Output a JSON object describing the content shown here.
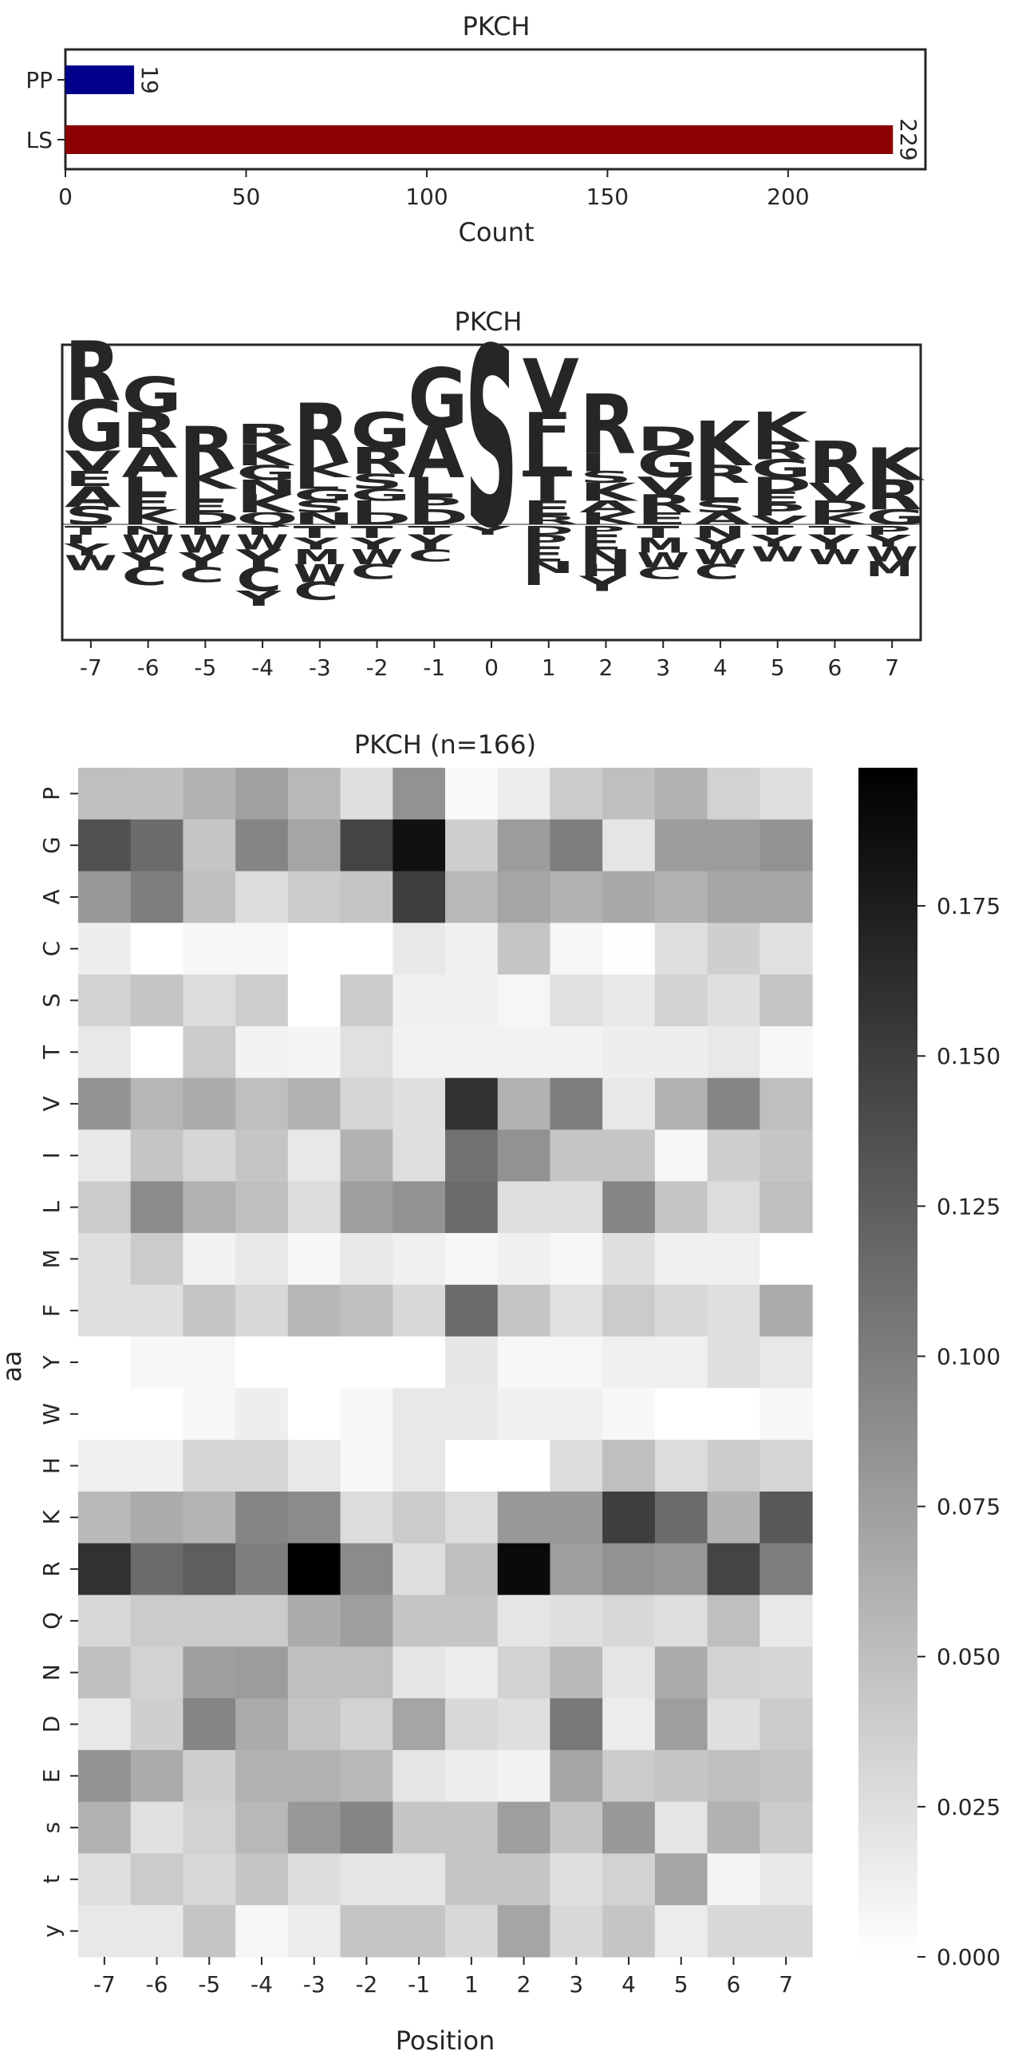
{
  "colors": {
    "PP": "#00008B",
    "LS": "#8B0000",
    "aa_colors": {
      "R": "#0000EE",
      "K": "#0000EE",
      "H": "#7B2FBE",
      "G": "#008000",
      "S": "#008000",
      "T": "#008000",
      "Y": "#008000",
      "A": "#008000",
      "C": "#008000",
      "N": "#9B30D0",
      "Q": "#9B30D0",
      "D": "#DC143C",
      "E": "#DC143C",
      "V": "#DAA520",
      "L": "#DAA520",
      "I": "#DAA520",
      "F": "#DAA520",
      "M": "#DAA520",
      "W": "#DAA520",
      "P": "#000000",
      "s": "#8B008B",
      "t": "#8B008B",
      "y": "#8B008B"
    }
  },
  "chart_data": [
    {
      "type": "bar",
      "orientation": "horizontal",
      "title": "PKCH",
      "categories": [
        "PP",
        "LS"
      ],
      "values": [
        19,
        229
      ],
      "xlabel": "Count",
      "ylabel": "",
      "xlim": [
        0,
        238
      ],
      "xticks": [
        0,
        50,
        100,
        150,
        200
      ],
      "data_labels": [
        "19",
        "229"
      ]
    },
    {
      "type": "sequence-logo",
      "title": "PKCH",
      "positions": [
        "-7",
        "-6",
        "-5",
        "-4",
        "-3",
        "-2",
        "-1",
        "0",
        "1",
        "2",
        "3",
        "4",
        "5",
        "6",
        "7"
      ],
      "enriched": [
        [
          [
            "S",
            0.06
          ],
          [
            "A",
            0.07
          ],
          [
            "E",
            0.05
          ],
          [
            "V",
            0.07
          ],
          [
            "G",
            0.17
          ],
          [
            "R",
            0.2
          ]
        ],
        [
          [
            "K",
            0.05
          ],
          [
            "E",
            0.05
          ],
          [
            "L",
            0.06
          ],
          [
            "A",
            0.1
          ],
          [
            "R",
            0.12
          ],
          [
            "G",
            0.12
          ]
        ],
        [
          [
            "D",
            0.04
          ],
          [
            "E",
            0.04
          ],
          [
            "L",
            0.04
          ],
          [
            "K",
            0.07
          ],
          [
            "R",
            0.14
          ]
        ],
        [
          [
            "Q",
            0.04
          ],
          [
            "K",
            0.06
          ],
          [
            "N",
            0.05
          ],
          [
            "G",
            0.05
          ],
          [
            "K",
            0.07
          ],
          [
            "R",
            0.07
          ]
        ],
        [
          [
            "N",
            0.04
          ],
          [
            "S",
            0.04
          ],
          [
            "G",
            0.04
          ],
          [
            "L",
            0.04
          ],
          [
            "K",
            0.05
          ],
          [
            "R",
            0.2
          ]
        ],
        [
          [
            "D",
            0.04
          ],
          [
            "I",
            0.04
          ],
          [
            "G",
            0.04
          ],
          [
            "S",
            0.05
          ],
          [
            "R",
            0.09
          ],
          [
            "G",
            0.12
          ]
        ],
        [
          [
            "D",
            0.05
          ],
          [
            "P",
            0.04
          ],
          [
            "L",
            0.07
          ],
          [
            "A",
            0.17
          ],
          [
            "G",
            0.2
          ]
        ],
        [
          [
            "S",
            0.6
          ]
        ],
        [
          [
            "R",
            0.03
          ],
          [
            "E",
            0.05
          ],
          [
            "T",
            0.1
          ],
          [
            "L",
            0.08
          ],
          [
            "F",
            0.12
          ],
          [
            "V",
            0.18
          ]
        ],
        [
          [
            "K",
            0.04
          ],
          [
            "A",
            0.04
          ],
          [
            "K",
            0.06
          ],
          [
            "S",
            0.04
          ],
          [
            "I",
            0.06
          ],
          [
            "R",
            0.2
          ]
        ],
        [
          [
            "E",
            0.04
          ],
          [
            "R",
            0.06
          ],
          [
            "V",
            0.06
          ],
          [
            "G",
            0.09
          ],
          [
            "D",
            0.08
          ]
        ],
        [
          [
            "A",
            0.04
          ],
          [
            "S",
            0.04
          ],
          [
            "L",
            0.06
          ],
          [
            "R",
            0.06
          ],
          [
            "K",
            0.15
          ]
        ],
        [
          [
            "V",
            0.03
          ],
          [
            "P",
            0.04
          ],
          [
            "E",
            0.04
          ],
          [
            "D",
            0.05
          ],
          [
            "G",
            0.06
          ],
          [
            "R",
            0.06
          ],
          [
            "K",
            0.1
          ]
        ],
        [
          [
            "K",
            0.04
          ],
          [
            "D",
            0.04
          ],
          [
            "V",
            0.06
          ],
          [
            "R",
            0.14
          ]
        ],
        [
          [
            "G",
            0.05
          ],
          [
            "R",
            0.1
          ],
          [
            "K",
            0.11
          ]
        ]
      ],
      "depleted": [
        [
          [
            "T",
            0.03
          ],
          [
            "I",
            0.03
          ],
          [
            "Y",
            0.04
          ],
          [
            "W",
            0.05
          ]
        ],
        [
          [
            "N",
            0.03
          ],
          [
            "W",
            0.06
          ],
          [
            "Y",
            0.05
          ],
          [
            "C",
            0.06
          ]
        ],
        [
          [
            "T",
            0.03
          ],
          [
            "W",
            0.06
          ],
          [
            "Y",
            0.05
          ],
          [
            "C",
            0.05
          ]
        ],
        [
          [
            "T",
            0.03
          ],
          [
            "W",
            0.05
          ],
          [
            "Y",
            0.06
          ],
          [
            "C",
            0.08
          ],
          [
            "Y",
            0.05
          ]
        ],
        [
          [
            "T",
            0.04
          ],
          [
            "Y",
            0.04
          ],
          [
            "M",
            0.05
          ],
          [
            "W",
            0.06
          ],
          [
            "C",
            0.06
          ]
        ],
        [
          [
            "T",
            0.04
          ],
          [
            "Y",
            0.04
          ],
          [
            "W",
            0.05
          ],
          [
            "C",
            0.05
          ]
        ],
        [
          [
            "T",
            0.03
          ],
          [
            "Y",
            0.05
          ],
          [
            "C",
            0.04
          ]
        ],
        [
          [
            "Y",
            0.03
          ]
        ],
        [
          [
            "D",
            0.03
          ],
          [
            "P",
            0.04
          ],
          [
            "E",
            0.05
          ],
          [
            "N",
            0.04
          ],
          [
            "I",
            0.04
          ]
        ],
        [
          [
            "P",
            0.03
          ],
          [
            "E",
            0.05
          ],
          [
            "N",
            0.05
          ],
          [
            "H",
            0.04
          ],
          [
            "Y",
            0.05
          ]
        ],
        [
          [
            "T",
            0.04
          ],
          [
            "M",
            0.05
          ],
          [
            "W",
            0.05
          ],
          [
            "C",
            0.04
          ]
        ],
        [
          [
            "N",
            0.04
          ],
          [
            "Y",
            0.04
          ],
          [
            "W",
            0.05
          ],
          [
            "C",
            0.05
          ]
        ],
        [
          [
            "T",
            0.03
          ],
          [
            "Y",
            0.04
          ],
          [
            "W",
            0.05
          ]
        ],
        [
          [
            "T",
            0.03
          ],
          [
            "Y",
            0.05
          ],
          [
            "W",
            0.05
          ]
        ],
        [
          [
            "P",
            0.03
          ],
          [
            "Y",
            0.04
          ],
          [
            "W",
            0.05
          ],
          [
            "M",
            0.05
          ]
        ]
      ]
    },
    {
      "type": "heatmap",
      "title": "PKCH (n=166)",
      "xlabel": "Position",
      "ylabel": "aa",
      "x": [
        "-7",
        "-6",
        "-5",
        "-4",
        "-3",
        "-2",
        "-1",
        "1",
        "2",
        "3",
        "4",
        "5",
        "6",
        "7"
      ],
      "y": [
        "P",
        "G",
        "A",
        "C",
        "S",
        "T",
        "V",
        "I",
        "L",
        "M",
        "F",
        "Y",
        "W",
        "H",
        "K",
        "R",
        "Q",
        "N",
        "D",
        "E",
        "s",
        "t",
        "y"
      ],
      "values": [
        [
          0.05,
          0.048,
          0.06,
          0.073,
          0.055,
          0.025,
          0.085,
          0.005,
          0.014,
          0.04,
          0.05,
          0.06,
          0.035,
          0.025
        ],
        [
          0.135,
          0.115,
          0.045,
          0.095,
          0.07,
          0.145,
          0.185,
          0.038,
          0.077,
          0.1,
          0.02,
          0.077,
          0.077,
          0.085
        ],
        [
          0.08,
          0.1,
          0.05,
          0.027,
          0.04,
          0.045,
          0.15,
          0.055,
          0.07,
          0.06,
          0.067,
          0.06,
          0.07,
          0.07
        ],
        [
          0.013,
          0.0,
          0.007,
          0.006,
          0.0,
          0.0,
          0.018,
          0.012,
          0.045,
          0.007,
          0.001,
          0.025,
          0.037,
          0.024
        ],
        [
          0.035,
          0.045,
          0.027,
          0.038,
          0.0,
          0.04,
          0.012,
          0.012,
          0.007,
          0.024,
          0.018,
          0.035,
          0.025,
          0.045
        ],
        [
          0.018,
          0.0,
          0.04,
          0.01,
          0.008,
          0.024,
          0.01,
          0.01,
          0.01,
          0.01,
          0.013,
          0.013,
          0.018,
          0.006
        ],
        [
          0.083,
          0.057,
          0.065,
          0.05,
          0.06,
          0.033,
          0.025,
          0.16,
          0.06,
          0.1,
          0.018,
          0.06,
          0.095,
          0.05
        ],
        [
          0.018,
          0.045,
          0.032,
          0.045,
          0.018,
          0.06,
          0.025,
          0.11,
          0.085,
          0.045,
          0.045,
          0.006,
          0.038,
          0.045
        ],
        [
          0.04,
          0.09,
          0.06,
          0.05,
          0.027,
          0.075,
          0.085,
          0.115,
          0.025,
          0.025,
          0.095,
          0.045,
          0.027,
          0.05
        ],
        [
          0.025,
          0.04,
          0.01,
          0.018,
          0.006,
          0.018,
          0.012,
          0.006,
          0.012,
          0.006,
          0.025,
          0.012,
          0.012,
          0.0
        ],
        [
          0.025,
          0.025,
          0.045,
          0.03,
          0.057,
          0.05,
          0.03,
          0.115,
          0.045,
          0.024,
          0.04,
          0.03,
          0.025,
          0.065
        ],
        [
          0.0,
          0.006,
          0.007,
          0.0,
          0.0,
          0.0,
          0.0,
          0.019,
          0.006,
          0.007,
          0.012,
          0.012,
          0.025,
          0.018
        ],
        [
          0.0,
          0.0,
          0.006,
          0.013,
          0.0,
          0.006,
          0.018,
          0.018,
          0.012,
          0.012,
          0.006,
          0.0,
          0.0,
          0.006
        ],
        [
          0.012,
          0.012,
          0.032,
          0.032,
          0.018,
          0.006,
          0.018,
          0.0,
          0.0,
          0.027,
          0.05,
          0.027,
          0.04,
          0.033
        ],
        [
          0.055,
          0.065,
          0.058,
          0.095,
          0.09,
          0.027,
          0.04,
          0.027,
          0.08,
          0.08,
          0.15,
          0.115,
          0.06,
          0.13
        ],
        [
          0.16,
          0.115,
          0.125,
          0.1,
          0.198,
          0.09,
          0.025,
          0.05,
          0.19,
          0.075,
          0.085,
          0.08,
          0.145,
          0.1
        ],
        [
          0.03,
          0.04,
          0.04,
          0.04,
          0.065,
          0.075,
          0.045,
          0.045,
          0.02,
          0.025,
          0.03,
          0.025,
          0.05,
          0.018
        ],
        [
          0.05,
          0.035,
          0.075,
          0.077,
          0.05,
          0.05,
          0.02,
          0.015,
          0.035,
          0.055,
          0.02,
          0.065,
          0.035,
          0.032
        ],
        [
          0.018,
          0.037,
          0.095,
          0.065,
          0.045,
          0.035,
          0.07,
          0.03,
          0.025,
          0.105,
          0.015,
          0.075,
          0.025,
          0.04
        ],
        [
          0.085,
          0.065,
          0.037,
          0.06,
          0.06,
          0.055,
          0.02,
          0.015,
          0.01,
          0.07,
          0.04,
          0.045,
          0.05,
          0.045
        ],
        [
          0.06,
          0.024,
          0.035,
          0.055,
          0.08,
          0.095,
          0.045,
          0.045,
          0.075,
          0.045,
          0.08,
          0.02,
          0.06,
          0.04
        ],
        [
          0.025,
          0.04,
          0.03,
          0.045,
          0.027,
          0.02,
          0.02,
          0.045,
          0.045,
          0.025,
          0.035,
          0.07,
          0.008,
          0.018
        ],
        [
          0.018,
          0.018,
          0.045,
          0.006,
          0.015,
          0.045,
          0.045,
          0.03,
          0.07,
          0.03,
          0.045,
          0.015,
          0.03,
          0.03
        ]
      ],
      "colorbar": {
        "min": 0.0,
        "max": 0.198,
        "ticks": [
          0.0,
          0.025,
          0.05,
          0.075,
          0.1,
          0.125,
          0.15,
          0.175
        ],
        "tick_labels": [
          "0.000",
          "0.025",
          "0.050",
          "0.075",
          "0.100",
          "0.125",
          "0.150",
          "0.175"
        ],
        "colormap": "Greys"
      }
    }
  ]
}
